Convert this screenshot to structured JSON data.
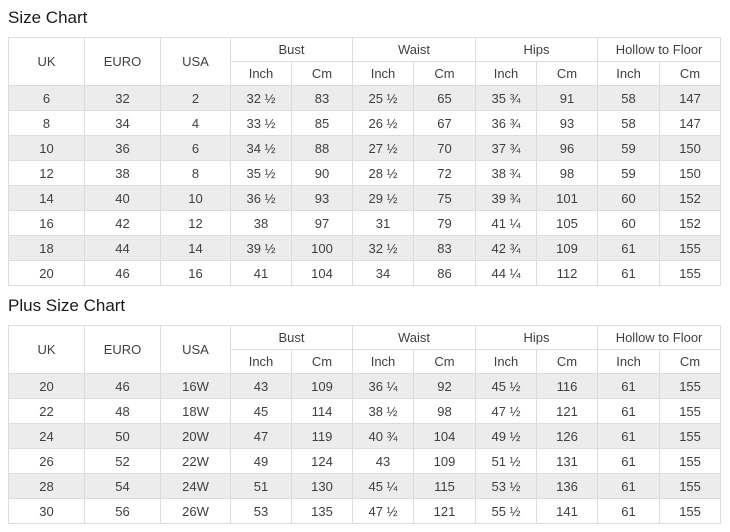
{
  "page": {
    "background": "#ffffff",
    "border_color": "#dcdcdc",
    "stripe_color": "#ececec",
    "text_color": "#3f3f3f",
    "title_color": "#1a1a1a"
  },
  "tables": [
    {
      "title": "Size Chart",
      "simple_headers": [
        "UK",
        "EURO",
        "USA"
      ],
      "group_headers": [
        "Bust",
        "Waist",
        "Hips",
        "Hollow to Floor"
      ],
      "unit_headers": [
        "Inch",
        "Cm",
        "Inch",
        "Cm",
        "Inch",
        "Cm",
        "Inch",
        "Cm"
      ],
      "rows": [
        [
          "6",
          "32",
          "2",
          "32 ½",
          "83",
          "25 ½",
          "65",
          "35 ¾",
          "91",
          "58",
          "147"
        ],
        [
          "8",
          "34",
          "4",
          "33 ½",
          "85",
          "26 ½",
          "67",
          "36 ¾",
          "93",
          "58",
          "147"
        ],
        [
          "10",
          "36",
          "6",
          "34 ½",
          "88",
          "27 ½",
          "70",
          "37 ¾",
          "96",
          "59",
          "150"
        ],
        [
          "12",
          "38",
          "8",
          "35 ½",
          "90",
          "28 ½",
          "72",
          "38 ¾",
          "98",
          "59",
          "150"
        ],
        [
          "14",
          "40",
          "10",
          "36 ½",
          "93",
          "29 ½",
          "75",
          "39 ¾",
          "101",
          "60",
          "152"
        ],
        [
          "16",
          "42",
          "12",
          "38",
          "97",
          "31",
          "79",
          "41 ¼",
          "105",
          "60",
          "152"
        ],
        [
          "18",
          "44",
          "14",
          "39 ½",
          "100",
          "32 ½",
          "83",
          "42 ¾",
          "109",
          "61",
          "155"
        ],
        [
          "20",
          "46",
          "16",
          "41",
          "104",
          "34",
          "86",
          "44 ¼",
          "112",
          "61",
          "155"
        ]
      ]
    },
    {
      "title": "Plus Size Chart",
      "simple_headers": [
        "UK",
        "EURO",
        "USA"
      ],
      "group_headers": [
        "Bust",
        "Waist",
        "Hips",
        "Hollow to Floor"
      ],
      "unit_headers": [
        "Inch",
        "Cm",
        "Inch",
        "Cm",
        "Inch",
        "Cm",
        "Inch",
        "Cm"
      ],
      "rows": [
        [
          "20",
          "46",
          "16W",
          "43",
          "109",
          "36 ¼",
          "92",
          "45 ½",
          "116",
          "61",
          "155"
        ],
        [
          "22",
          "48",
          "18W",
          "45",
          "114",
          "38 ½",
          "98",
          "47 ½",
          "121",
          "61",
          "155"
        ],
        [
          "24",
          "50",
          "20W",
          "47",
          "119",
          "40 ¾",
          "104",
          "49 ½",
          "126",
          "61",
          "155"
        ],
        [
          "26",
          "52",
          "22W",
          "49",
          "124",
          "43",
          "109",
          "51 ½",
          "131",
          "61",
          "155"
        ],
        [
          "28",
          "54",
          "24W",
          "51",
          "130",
          "45 ¼",
          "115",
          "53 ½",
          "136",
          "61",
          "155"
        ],
        [
          "30",
          "56",
          "26W",
          "53",
          "135",
          "47 ½",
          "121",
          "55 ½",
          "141",
          "61",
          "155"
        ]
      ]
    }
  ]
}
